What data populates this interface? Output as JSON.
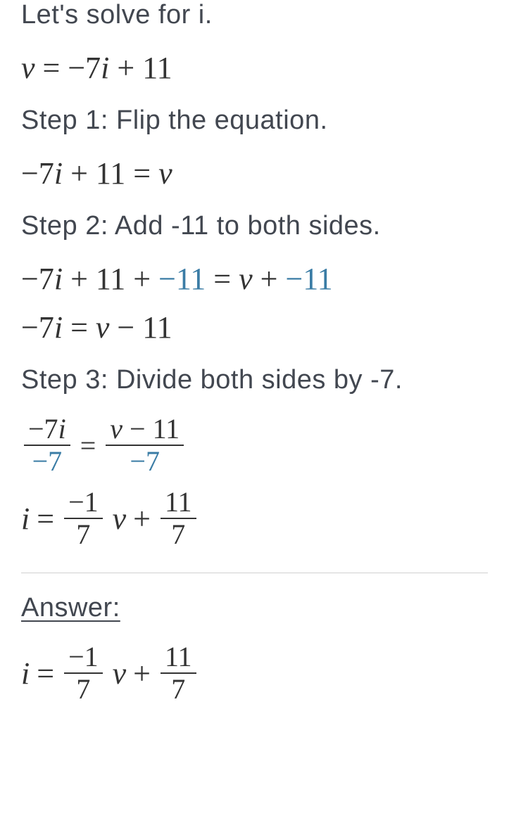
{
  "intro": {
    "text": "Let's solve for i.",
    "fontsize": 38,
    "color": "#424750"
  },
  "eq_initial": {
    "lhs_var": "v",
    "rhs": "= −7",
    "rhs_var": "i",
    "rhs_tail": " + 11",
    "fontsize": 44,
    "color": "#333333"
  },
  "step1": {
    "label": "Step 1: Flip the equation.",
    "fontsize": 38,
    "eq": {
      "part1": "−7",
      "var1": "i",
      "part2": " + 11 = ",
      "var2": "v"
    }
  },
  "step2": {
    "label": "Step 2: Add -11 to both sides.",
    "fontsize": 38,
    "eq1": {
      "p1": "−7",
      "v1": "i",
      "p2": " + 11 + ",
      "accent1": "−11",
      "p3": " = ",
      "v2": "v",
      "p4": " + ",
      "accent2": "−11"
    },
    "eq2": {
      "p1": "−7",
      "v1": "i",
      "p2": " = ",
      "v2": "v",
      "p3": " − 11"
    }
  },
  "step3": {
    "label": "Step 3: Divide both sides by -7.",
    "fontsize": 38,
    "eq1": {
      "frac1_num_p1": "−7",
      "frac1_num_v": "i",
      "frac1_den": "−7",
      "eq": " = ",
      "frac2_num_v": "v",
      "frac2_num_p": " − 11",
      "frac2_den": "−7"
    },
    "eq2": {
      "v1": "i",
      "p1": " = ",
      "frac1_num": "−1",
      "frac1_den": "7",
      "v2": "v",
      "p2": " + ",
      "frac2_num": "11",
      "frac2_den": "7"
    }
  },
  "answer": {
    "heading": "Answer:",
    "fontsize": 38,
    "eq": {
      "v1": "i",
      "p1": " = ",
      "frac1_num": "−1",
      "frac1_den": "7",
      "v2": "v",
      "p2": " + ",
      "frac2_num": "11",
      "frac2_den": "7"
    }
  },
  "styling": {
    "text_color": "#424750",
    "math_color": "#333333",
    "accent_color": "#3a7ca5",
    "divider_color": "#d0d0d0",
    "text_font_weight": 300,
    "math_fontsize": 44,
    "frac_fontsize": 40
  }
}
